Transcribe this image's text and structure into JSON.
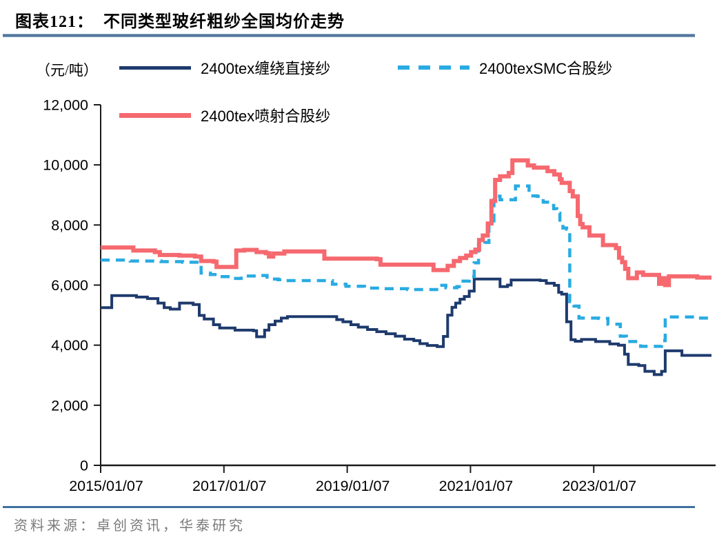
{
  "page": {
    "title_text": "图表121：  不同类型玻纤粗纱全国均价走势",
    "source_text": "资料来源：卓创资讯，华泰研究"
  },
  "style": {
    "title_rule_color": "#53779e",
    "source_rule_color": "#3f6f9f",
    "axis_color": "#1a1a1a",
    "source_text_color": "#7a7a7a"
  },
  "chart_data": {
    "type": "line",
    "title": "不同类型玻纤粗纱全国均价走势",
    "unit_label": "（元/吨）",
    "xlabel": "",
    "ylabel": "（元/吨）",
    "grid": false,
    "legend_position": "top-left",
    "interpolation": "step-after",
    "x_range": [
      2015.02,
      2024.93
    ],
    "ylim": [
      0,
      12000
    ],
    "y_tick_values": [
      0,
      2000,
      4000,
      6000,
      8000,
      10000,
      12000
    ],
    "y_tick_labels": [
      "0",
      "2,000",
      "4,000",
      "6,000",
      "8,000",
      "10,000",
      "12,000"
    ],
    "x_tick_labels": [
      "2015/01/07",
      "2017/01/07",
      "2019/01/07",
      "2021/01/07",
      "2023/01/07"
    ],
    "x_tick_positions": [
      2015.02,
      2017.02,
      2019.02,
      2021.02,
      2023.02
    ],
    "series": [
      {
        "name": "2400tex缠绕直接纱",
        "color": "#1e3a6d",
        "dash": "solid",
        "stroke_width": 4,
        "points": [
          [
            2015.02,
            5250
          ],
          [
            2015.2,
            5650
          ],
          [
            2015.6,
            5600
          ],
          [
            2015.78,
            5550
          ],
          [
            2015.95,
            5400
          ],
          [
            2016.05,
            5250
          ],
          [
            2016.15,
            5200
          ],
          [
            2016.3,
            5400
          ],
          [
            2016.52,
            5350
          ],
          [
            2016.62,
            4990
          ],
          [
            2016.7,
            4870
          ],
          [
            2016.85,
            4680
          ],
          [
            2016.95,
            4570
          ],
          [
            2017.2,
            4500
          ],
          [
            2017.5,
            4480
          ],
          [
            2017.55,
            4280
          ],
          [
            2017.68,
            4500
          ],
          [
            2017.75,
            4680
          ],
          [
            2017.85,
            4800
          ],
          [
            2017.95,
            4900
          ],
          [
            2018.05,
            4950
          ],
          [
            2018.78,
            4950
          ],
          [
            2018.85,
            4850
          ],
          [
            2018.95,
            4780
          ],
          [
            2019.08,
            4680
          ],
          [
            2019.2,
            4600
          ],
          [
            2019.35,
            4520
          ],
          [
            2019.5,
            4450
          ],
          [
            2019.65,
            4380
          ],
          [
            2019.8,
            4300
          ],
          [
            2019.95,
            4200
          ],
          [
            2020.1,
            4150
          ],
          [
            2020.2,
            4050
          ],
          [
            2020.32,
            3990
          ],
          [
            2020.48,
            3950
          ],
          [
            2020.58,
            4290
          ],
          [
            2020.65,
            5000
          ],
          [
            2020.72,
            5260
          ],
          [
            2020.78,
            5400
          ],
          [
            2020.85,
            5530
          ],
          [
            2020.92,
            5620
          ],
          [
            2021.0,
            5800
          ],
          [
            2021.08,
            6200
          ],
          [
            2021.45,
            6200
          ],
          [
            2021.5,
            5950
          ],
          [
            2021.62,
            6000
          ],
          [
            2021.68,
            6170
          ],
          [
            2022.15,
            6150
          ],
          [
            2022.25,
            6060
          ],
          [
            2022.38,
            5990
          ],
          [
            2022.45,
            5760
          ],
          [
            2022.5,
            5700
          ],
          [
            2022.58,
            4780
          ],
          [
            2022.65,
            4180
          ],
          [
            2022.72,
            4130
          ],
          [
            2022.82,
            4190
          ],
          [
            2023.05,
            4120
          ],
          [
            2023.28,
            4040
          ],
          [
            2023.42,
            4000
          ],
          [
            2023.52,
            3700
          ],
          [
            2023.58,
            3360
          ],
          [
            2023.75,
            3320
          ],
          [
            2023.85,
            3130
          ],
          [
            2024.0,
            3020
          ],
          [
            2024.12,
            3130
          ],
          [
            2024.18,
            3810
          ],
          [
            2024.38,
            3810
          ],
          [
            2024.45,
            3660
          ]
        ]
      },
      {
        "name": "2400texSMC合股纱",
        "color": "#29abe2",
        "dash": "dashed",
        "stroke_width": 4.5,
        "points": [
          [
            2015.02,
            6830
          ],
          [
            2015.5,
            6800
          ],
          [
            2016.0,
            6780
          ],
          [
            2016.35,
            6760
          ],
          [
            2016.65,
            6400
          ],
          [
            2016.8,
            6350
          ],
          [
            2016.95,
            6280
          ],
          [
            2017.15,
            6220
          ],
          [
            2017.3,
            6300
          ],
          [
            2017.6,
            6320
          ],
          [
            2017.72,
            6200
          ],
          [
            2017.9,
            6180
          ],
          [
            2018.0,
            6150
          ],
          [
            2018.78,
            6030
          ],
          [
            2019.0,
            5960
          ],
          [
            2019.3,
            5900
          ],
          [
            2019.6,
            5880
          ],
          [
            2020.0,
            5850
          ],
          [
            2020.5,
            5990
          ],
          [
            2020.62,
            5910
          ],
          [
            2020.8,
            5950
          ],
          [
            2020.9,
            6130
          ],
          [
            2021.0,
            6280
          ],
          [
            2021.08,
            6740
          ],
          [
            2021.15,
            7350
          ],
          [
            2021.25,
            7420
          ],
          [
            2021.32,
            8050
          ],
          [
            2021.4,
            8960
          ],
          [
            2021.5,
            8840
          ],
          [
            2021.75,
            9300
          ],
          [
            2021.97,
            8970
          ],
          [
            2022.1,
            8950
          ],
          [
            2022.2,
            8760
          ],
          [
            2022.3,
            8650
          ],
          [
            2022.37,
            8540
          ],
          [
            2022.42,
            8390
          ],
          [
            2022.47,
            8160
          ],
          [
            2022.52,
            7900
          ],
          [
            2022.58,
            7860
          ],
          [
            2022.63,
            5450
          ],
          [
            2022.7,
            5300
          ],
          [
            2022.78,
            4900
          ],
          [
            2023.1,
            4890
          ],
          [
            2023.25,
            4700
          ],
          [
            2023.45,
            4300
          ],
          [
            2023.55,
            4120
          ],
          [
            2023.78,
            3960
          ],
          [
            2024.12,
            4150
          ],
          [
            2024.18,
            4840
          ],
          [
            2024.28,
            4940
          ],
          [
            2024.7,
            4900
          ]
        ]
      },
      {
        "name": "2400tex喷射合股纱",
        "color": "#f5696f",
        "dash": "solid",
        "stroke_width": 6,
        "points": [
          [
            2015.02,
            7250
          ],
          [
            2015.55,
            7150
          ],
          [
            2015.9,
            7100
          ],
          [
            2015.98,
            7000
          ],
          [
            2016.3,
            6980
          ],
          [
            2016.55,
            6950
          ],
          [
            2016.65,
            6800
          ],
          [
            2016.85,
            6780
          ],
          [
            2016.9,
            6600
          ],
          [
            2017.22,
            7150
          ],
          [
            2017.35,
            7170
          ],
          [
            2017.55,
            7100
          ],
          [
            2017.7,
            7060
          ],
          [
            2017.75,
            6950
          ],
          [
            2017.82,
            7050
          ],
          [
            2018.0,
            7120
          ],
          [
            2018.65,
            6880
          ],
          [
            2019.5,
            6860
          ],
          [
            2019.56,
            6680
          ],
          [
            2020.42,
            6500
          ],
          [
            2020.65,
            6640
          ],
          [
            2020.75,
            6800
          ],
          [
            2020.85,
            6900
          ],
          [
            2020.95,
            6980
          ],
          [
            2021.03,
            7100
          ],
          [
            2021.1,
            7180
          ],
          [
            2021.16,
            7500
          ],
          [
            2021.22,
            7650
          ],
          [
            2021.3,
            8050
          ],
          [
            2021.36,
            8800
          ],
          [
            2021.42,
            9500
          ],
          [
            2021.5,
            9620
          ],
          [
            2021.64,
            9730
          ],
          [
            2021.7,
            10150
          ],
          [
            2021.95,
            9980
          ],
          [
            2022.05,
            9910
          ],
          [
            2022.27,
            9790
          ],
          [
            2022.38,
            9680
          ],
          [
            2022.47,
            9520
          ],
          [
            2022.5,
            9400
          ],
          [
            2022.63,
            9130
          ],
          [
            2022.68,
            8950
          ],
          [
            2022.76,
            8300
          ],
          [
            2022.8,
            8030
          ],
          [
            2022.84,
            7920
          ],
          [
            2022.95,
            7650
          ],
          [
            2023.17,
            7330
          ],
          [
            2023.38,
            7230
          ],
          [
            2023.43,
            6910
          ],
          [
            2023.48,
            6760
          ],
          [
            2023.53,
            6540
          ],
          [
            2023.58,
            6230
          ],
          [
            2023.72,
            6420
          ],
          [
            2023.82,
            6340
          ],
          [
            2024.08,
            6040
          ],
          [
            2024.14,
            6230
          ],
          [
            2024.18,
            6000
          ],
          [
            2024.24,
            6290
          ],
          [
            2024.7,
            6250
          ]
        ]
      }
    ]
  }
}
